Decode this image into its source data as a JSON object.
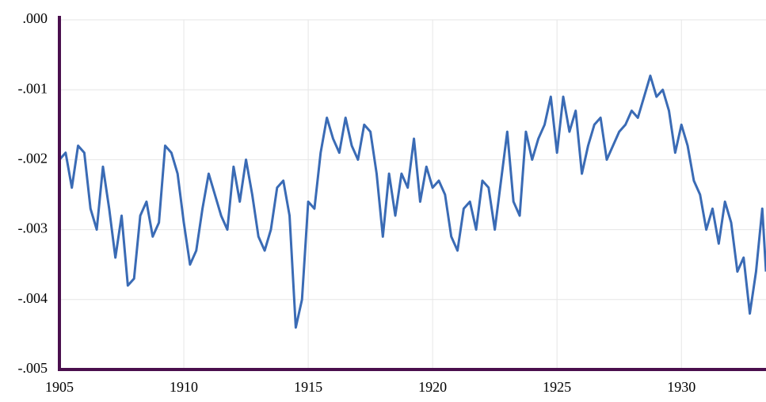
{
  "chart_data": {
    "type": "line",
    "x": [
      1905,
      1905.25,
      1905.5,
      1905.75,
      1906,
      1906.25,
      1906.5,
      1906.75,
      1907,
      1907.25,
      1907.5,
      1907.75,
      1908,
      1908.25,
      1908.5,
      1908.75,
      1909,
      1909.25,
      1909.5,
      1909.75,
      1910,
      1910.25,
      1910.5,
      1910.75,
      1911,
      1911.25,
      1911.5,
      1911.75,
      1912,
      1912.25,
      1912.5,
      1912.75,
      1913,
      1913.25,
      1913.5,
      1913.75,
      1914,
      1914.25,
      1914.5,
      1914.75,
      1915,
      1915.25,
      1915.5,
      1915.75,
      1916,
      1916.25,
      1916.5,
      1916.75,
      1917,
      1917.25,
      1917.5,
      1917.75,
      1918,
      1918.25,
      1918.5,
      1918.75,
      1919,
      1919.25,
      1919.5,
      1919.75,
      1920,
      1920.25,
      1920.5,
      1920.75,
      1921,
      1921.25,
      1921.5,
      1921.75,
      1922,
      1922.25,
      1922.5,
      1922.75,
      1923,
      1923.25,
      1923.5,
      1923.75,
      1924,
      1924.25,
      1924.5,
      1924.75,
      1925,
      1925.25,
      1925.5,
      1925.75,
      1926,
      1926.25,
      1926.5,
      1926.75,
      1927,
      1927.25,
      1927.5,
      1927.75,
      1928,
      1928.25,
      1928.5,
      1928.75,
      1929,
      1929.25,
      1929.5,
      1929.75,
      1930,
      1930.25,
      1930.5,
      1930.75,
      1931,
      1931.25,
      1931.5,
      1931.75,
      1932,
      1932.25,
      1932.5,
      1932.75,
      1933,
      1933.25,
      1933.4
    ],
    "series": [
      {
        "color": "#3a6bb5",
        "values": [
          -0.002,
          -0.0019,
          -0.0024,
          -0.0018,
          -0.0019,
          -0.0027,
          -0.003,
          -0.0021,
          -0.0027,
          -0.0034,
          -0.0028,
          -0.0038,
          -0.0037,
          -0.0028,
          -0.0026,
          -0.0031,
          -0.0029,
          -0.0018,
          -0.0019,
          -0.0022,
          -0.0029,
          -0.0035,
          -0.0033,
          -0.0027,
          -0.0022,
          -0.0025,
          -0.0028,
          -0.003,
          -0.0021,
          -0.0026,
          -0.002,
          -0.0025,
          -0.0031,
          -0.0033,
          -0.003,
          -0.0024,
          -0.0023,
          -0.0028,
          -0.0044,
          -0.004,
          -0.0026,
          -0.0027,
          -0.0019,
          -0.0014,
          -0.0017,
          -0.0019,
          -0.0014,
          -0.0018,
          -0.002,
          -0.0015,
          -0.0016,
          -0.0022,
          -0.0031,
          -0.0022,
          -0.0028,
          -0.0022,
          -0.0024,
          -0.0017,
          -0.0026,
          -0.0021,
          -0.0024,
          -0.0023,
          -0.0025,
          -0.0031,
          -0.0033,
          -0.0027,
          -0.0026,
          -0.003,
          -0.0023,
          -0.0024,
          -0.003,
          -0.0023,
          -0.0016,
          -0.0026,
          -0.0028,
          -0.0016,
          -0.002,
          -0.0017,
          -0.0015,
          -0.0011,
          -0.0019,
          -0.0011,
          -0.0016,
          -0.0013,
          -0.0022,
          -0.0018,
          -0.0015,
          -0.0014,
          -0.002,
          -0.0018,
          -0.0016,
          -0.0015,
          -0.0013,
          -0.0014,
          -0.0011,
          -0.0008,
          -0.0011,
          -0.001,
          -0.0013,
          -0.0019,
          -0.0015,
          -0.0018,
          -0.0023,
          -0.0025,
          -0.003,
          -0.0027,
          -0.0032,
          -0.0026,
          -0.0029,
          -0.0036,
          -0.0034,
          -0.0042,
          -0.0036,
          -0.0027,
          -0.0036
        ]
      }
    ],
    "xlim": [
      1905,
      1933.4
    ],
    "xticks": [
      1905,
      1910,
      1915,
      1920,
      1925,
      1930
    ],
    "ylim": [
      -0.005,
      0
    ],
    "yticks": [
      {
        "value": 0,
        "label": ".000"
      },
      {
        "value": -0.001,
        "label": "-.001"
      },
      {
        "value": -0.002,
        "label": "-.002"
      },
      {
        "value": -0.003,
        "label": "-.003"
      },
      {
        "value": -0.004,
        "label": "-.004"
      },
      {
        "value": -0.005,
        "label": "-.005"
      }
    ],
    "grid": true
  }
}
